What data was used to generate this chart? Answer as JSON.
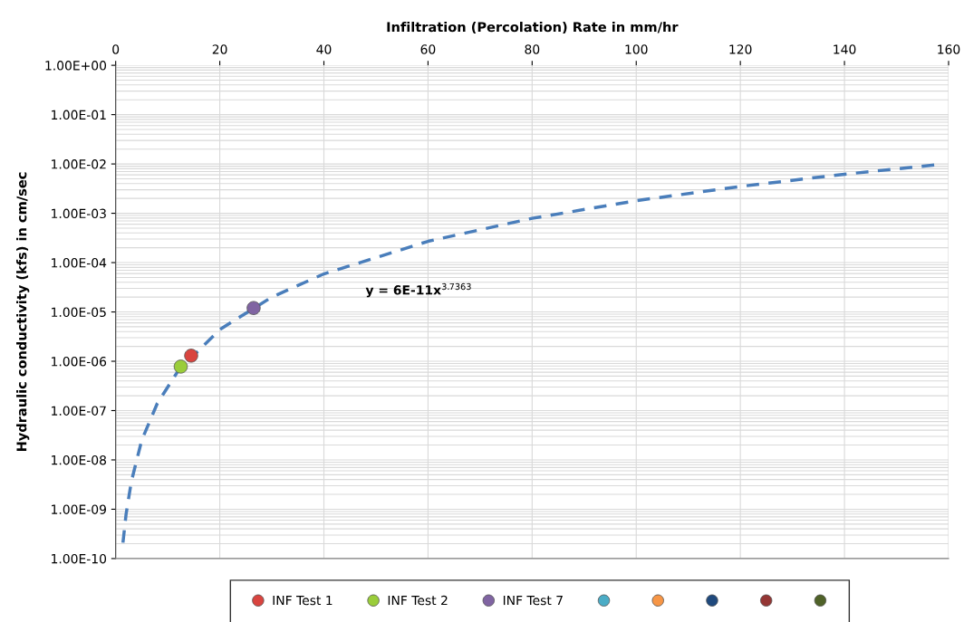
{
  "chart_data": {
    "type": "scatter",
    "xlabel": "Infiltration (Percolation) Rate in mm/hr",
    "ylabel": "Hydraulic conductivity (kfs) in cm/sec",
    "log": "y",
    "xlim": [
      0,
      160
    ],
    "xticks": [
      0,
      20,
      40,
      60,
      80,
      100,
      120,
      140,
      160
    ],
    "ylim": [
      1e-10,
      1
    ],
    "yticks": [
      {
        "value": 1e-10,
        "label": "1.00E-10"
      },
      {
        "value": 1e-09,
        "label": "1.00E-09"
      },
      {
        "value": 1e-08,
        "label": "1.00E-08"
      },
      {
        "value": 1e-07,
        "label": "1.00E-07"
      },
      {
        "value": 1e-06,
        "label": "1.00E-06"
      },
      {
        "value": 1e-05,
        "label": "1.00E-05"
      },
      {
        "value": 0.0001,
        "label": "1.00E-04"
      },
      {
        "value": 0.001,
        "label": "1.00E-03"
      },
      {
        "value": 0.01,
        "label": "1.00E-02"
      },
      {
        "value": 0.1,
        "label": "1.00E-01"
      },
      {
        "value": 1,
        "label": "1.00E+00"
      }
    ],
    "grid": true,
    "legend": "bottom",
    "marker": "circle",
    "annotations": [
      "y = 6E-11x$^{3.7363}$"
    ],
    "series": [
      {
        "type": "line",
        "color": "#4a7ebb",
        "line_style": "dashed",
        "marker": "none",
        "x": [
          1.4,
          2,
          3,
          5,
          8,
          12,
          20,
          30,
          40,
          60,
          80,
          100,
          120,
          140,
          158
        ],
        "values": [
          2.1e-10,
          8e-10,
          3.6e-09,
          2.5e-08,
          1.4e-07,
          6.4e-07,
          4.4e-06,
          2e-05,
          5.9e-05,
          0.00027,
          0.00079,
          0.0018,
          0.0035,
          0.0062,
          0.0097
        ]
      },
      {
        "name": "INF Test 1",
        "color": "#d9443f",
        "x": [
          14.5
        ],
        "values": [
          1.3e-06
        ]
      },
      {
        "name": "INF Test 2",
        "color": "#9acd3a",
        "x": [
          12.5
        ],
        "values": [
          7.8e-07
        ]
      },
      {
        "name": "INF Test 7",
        "color": "#8064a2",
        "x": [
          26.5
        ],
        "values": [
          1.2e-05
        ]
      },
      {
        "color": "#4bacc6"
      },
      {
        "color": "#f79646"
      },
      {
        "color": "#1f497d"
      },
      {
        "color": "#943634"
      },
      {
        "color": "#4f6228"
      }
    ]
  }
}
